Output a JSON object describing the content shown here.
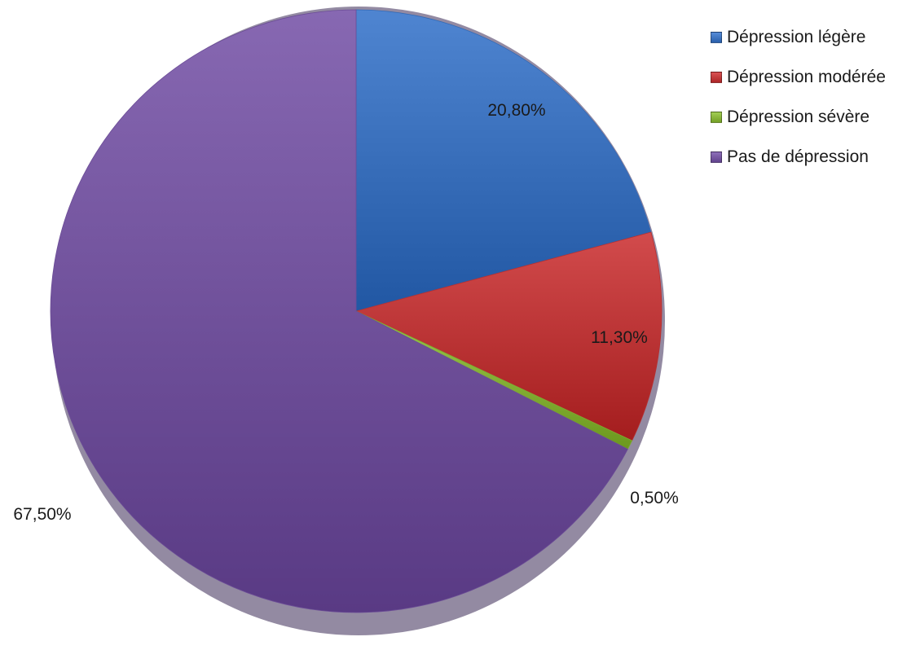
{
  "chart_data": {
    "type": "pie",
    "title": "",
    "legend_position": "top-right",
    "categories": [
      "Dépression légère",
      "Dépression modérée",
      "Dépression sévère",
      "Pas de dépression"
    ],
    "values": [
      20.8,
      11.3,
      0.5,
      67.5
    ],
    "value_unit": "%",
    "labels": [
      "20,80%",
      "11,30%",
      "0,50%",
      "67,50%"
    ],
    "colors": [
      "#3d73bf",
      "#c0393a",
      "#88b43a",
      "#7556a0"
    ],
    "legend": [
      {
        "label": "Dépression légère",
        "color": "#3d73bf"
      },
      {
        "label": "Dépression modérée",
        "color": "#c0393a"
      },
      {
        "label": "Dépression sévère",
        "color": "#88b43a"
      },
      {
        "label": "Pas de dépression",
        "color": "#7556a0"
      }
    ]
  }
}
